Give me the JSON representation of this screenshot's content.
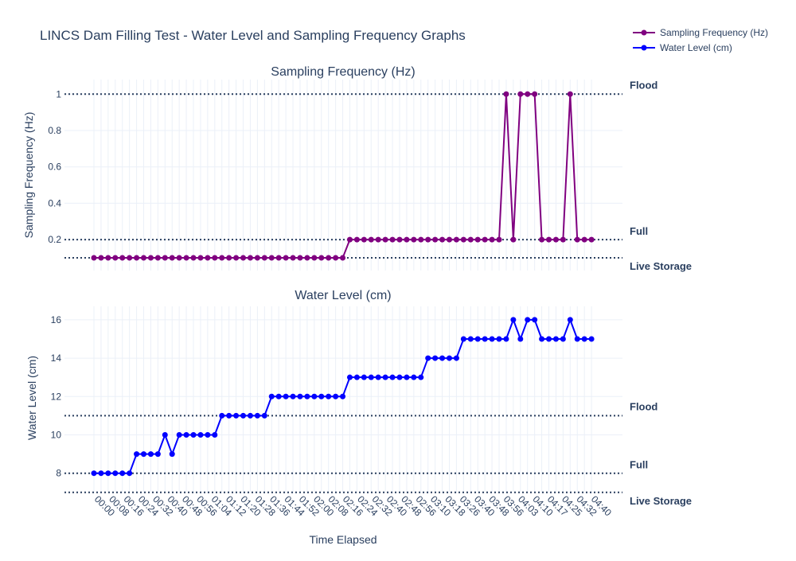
{
  "chart_data": {
    "type": "line",
    "title": "LINCS Dam Filling Test - Water Level and Sampling Frequency Graphs",
    "xlabel": "Time Elapsed",
    "legend": {
      "placement": "top-right",
      "entries": [
        {
          "name": "Sampling Frequency (Hz)",
          "color": "#800080"
        },
        {
          "name": "Water Level (cm)",
          "color": "#0000ff"
        }
      ]
    },
    "x_ticks": [
      "00:00",
      "00:08",
      "00:16",
      "00:24",
      "00:32",
      "00:40",
      "00:48",
      "00:56",
      "01:04",
      "01:12",
      "01:20",
      "01:28",
      "01:36",
      "01:44",
      "01:52",
      "02:00",
      "02:08",
      "02:16",
      "02:24",
      "02:32",
      "02:40",
      "02:48",
      "02:56",
      "03:10",
      "03:18",
      "03:26",
      "03:40",
      "03:48",
      "03:56",
      "04:03",
      "04:10",
      "04:17",
      "04:25",
      "04:32",
      "04:40"
    ],
    "panels": [
      {
        "subtitle": "Sampling Frequency (Hz)",
        "ylabel": "Sampling Frequency (Hz)",
        "ylim": [
          0.03,
          1.08
        ],
        "y_ticks": [
          0.2,
          0.4,
          0.6,
          0.8,
          1
        ],
        "y_tick_labels": [
          "0.2",
          "0.4",
          "0.6",
          "0.8",
          "1"
        ],
        "series_name": "Sampling Frequency (Hz)",
        "color": "#800080",
        "values": [
          0.1,
          0.1,
          0.1,
          0.1,
          0.1,
          0.1,
          0.1,
          0.1,
          0.1,
          0.1,
          0.1,
          0.1,
          0.1,
          0.1,
          0.1,
          0.1,
          0.1,
          0.1,
          0.1,
          0.1,
          0.1,
          0.1,
          0.1,
          0.1,
          0.1,
          0.1,
          0.1,
          0.1,
          0.1,
          0.1,
          0.1,
          0.1,
          0.1,
          0.1,
          0.1,
          0.1,
          0.2,
          0.2,
          0.2,
          0.2,
          0.2,
          0.2,
          0.2,
          0.2,
          0.2,
          0.2,
          0.2,
          0.2,
          0.2,
          0.2,
          0.2,
          0.2,
          0.2,
          0.2,
          0.2,
          0.2,
          0.2,
          0.2,
          1,
          0.2,
          1,
          1,
          1,
          0.2,
          0.2,
          0.2,
          0.2,
          1,
          0.2,
          0.2,
          0.2
        ],
        "reference_lines": [
          {
            "label": "Flood",
            "y": 1
          },
          {
            "label": "Full",
            "y": 0.2
          },
          {
            "label": "Live Storage",
            "y": 0.1
          }
        ]
      },
      {
        "subtitle": "Water Level (cm)",
        "ylabel": "Water Level (cm)",
        "ylim": [
          6.95,
          16.7
        ],
        "y_ticks": [
          8,
          10,
          12,
          14,
          16
        ],
        "y_tick_labels": [
          "8",
          "10",
          "12",
          "14",
          "16"
        ],
        "series_name": "Water Level (cm)",
        "color": "#0000ff",
        "values": [
          8,
          8,
          8,
          8,
          8,
          8,
          9,
          9,
          9,
          9,
          10,
          9,
          10,
          10,
          10,
          10,
          10,
          10,
          11,
          11,
          11,
          11,
          11,
          11,
          11,
          12,
          12,
          12,
          12,
          12,
          12,
          12,
          12,
          12,
          12,
          12,
          13,
          13,
          13,
          13,
          13,
          13,
          13,
          13,
          13,
          13,
          13,
          14,
          14,
          14,
          14,
          14,
          15,
          15,
          15,
          15,
          15,
          15,
          15,
          16,
          15,
          16,
          16,
          15,
          15,
          15,
          15,
          16,
          15,
          15,
          15
        ],
        "reference_lines": [
          {
            "label": "Flood",
            "y": 11
          },
          {
            "label": "Full",
            "y": 8
          },
          {
            "label": "Live Storage",
            "y": 7
          }
        ]
      }
    ]
  }
}
